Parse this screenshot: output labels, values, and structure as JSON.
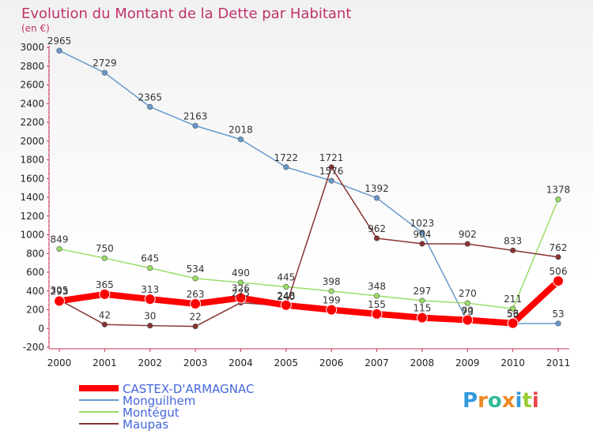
{
  "chart_data": {
    "type": "line",
    "title": "Evolution du Montant de la Dette par Habitant",
    "subtitle": "(en €)",
    "xlabel": "",
    "ylabel": "",
    "x": [
      "2000",
      "2001",
      "2002",
      "2003",
      "2004",
      "2005",
      "2006",
      "2007",
      "2008",
      "2009",
      "2010",
      "2011"
    ],
    "ylim": [
      -200,
      3000
    ],
    "yticks": [
      -200,
      0,
      200,
      400,
      600,
      800,
      1000,
      1200,
      1400,
      1600,
      1800,
      2000,
      2200,
      2400,
      2600,
      2800,
      3000
    ],
    "grid": false,
    "legend_position": "bottom-left",
    "series": [
      {
        "name": "CASTEX-D'ARMAGNAC",
        "color": "#ff0000",
        "values": [
          293,
          365,
          313,
          263,
          326,
          248,
          199,
          155,
          115,
          90,
          56,
          506
        ],
        "labels": [
          "293",
          "365",
          "313",
          "263",
          "326",
          "248",
          "199",
          "155",
          "115",
          "90",
          "56",
          "506"
        ]
      },
      {
        "name": "Monguilhem",
        "color": "#6699cc",
        "values": [
          2965,
          2729,
          2365,
          2163,
          2018,
          1722,
          1576,
          1392,
          1023,
          73,
          53,
          53
        ],
        "labels": [
          "2965",
          "2729",
          "2365",
          "2163",
          "2018",
          "1722",
          "1576",
          "1392",
          "1023",
          "73",
          "53",
          "53"
        ]
      },
      {
        "name": "Montégut",
        "color": "#99dd66",
        "values": [
          849,
          750,
          645,
          534,
          490,
          445,
          398,
          348,
          297,
          270,
          211,
          1378
        ],
        "labels": [
          "849",
          "750",
          "645",
          "534",
          "490",
          "445",
          "398",
          "348",
          "297",
          "270",
          "211",
          "1378"
        ]
      },
      {
        "name": "Maupas",
        "color": "#883333",
        "values": [
          305,
          42,
          30,
          22,
          275,
          240,
          1721,
          962,
          904,
          902,
          833,
          762
        ],
        "labels": [
          "305",
          "42",
          "30",
          "22",
          "275",
          "240",
          "1721",
          "962",
          "904",
          "902",
          "833",
          "762"
        ]
      }
    ]
  },
  "logo": {
    "text": "Proxiti",
    "letter_colors": [
      "#3399dd",
      "#ee8822",
      "#33bb99",
      "#ee8822",
      "#3399dd",
      "#99cc33",
      "#ee4444"
    ]
  }
}
